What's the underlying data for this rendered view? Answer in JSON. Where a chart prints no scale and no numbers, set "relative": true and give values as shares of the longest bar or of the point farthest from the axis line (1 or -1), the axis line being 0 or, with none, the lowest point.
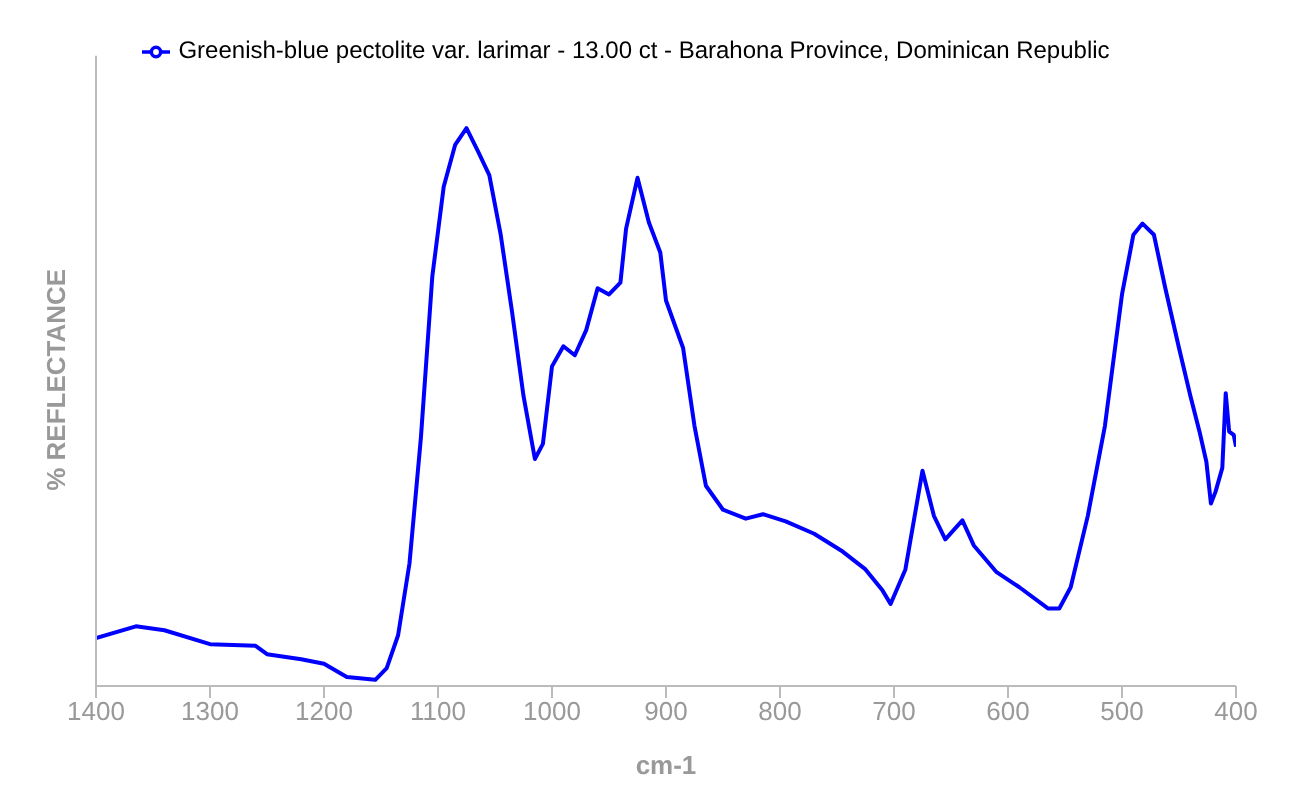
{
  "chart_data": {
    "type": "line",
    "xlabel": "cm-1",
    "ylabel": "% REFLECTANCE",
    "relative": true,
    "xlim": [
      1400,
      400
    ],
    "xticks": [
      1400,
      1300,
      1200,
      1100,
      1000,
      900,
      800,
      700,
      600,
      500,
      400
    ],
    "x": [
      1400,
      1365,
      1340,
      1300,
      1260,
      1250,
      1220,
      1200,
      1180,
      1155,
      1145,
      1135,
      1125,
      1115,
      1105,
      1095,
      1085,
      1075,
      1065,
      1055,
      1045,
      1035,
      1025,
      1015,
      1008,
      1000,
      990,
      980,
      970,
      960,
      950,
      940,
      935,
      925,
      915,
      905,
      900,
      885,
      875,
      865,
      850,
      830,
      815,
      795,
      770,
      745,
      725,
      710,
      703,
      690,
      675,
      665,
      655,
      640,
      630,
      610,
      590,
      565,
      555,
      545,
      530,
      515,
      500,
      490,
      482,
      472,
      462,
      450,
      440,
      432,
      426,
      422,
      418,
      412,
      409,
      406,
      402,
      400
    ],
    "series": [
      {
        "name": "Greenish-blue pectolite var. larimar - 13.00 ct - Barahona Province, Dominican Republic",
        "color": "#0000ff",
        "values": [
          0.086,
          0.107,
          0.1,
          0.075,
          0.072,
          0.057,
          0.048,
          0.04,
          0.016,
          0.011,
          0.032,
          0.091,
          0.22,
          0.445,
          0.734,
          0.895,
          0.97,
          1.0,
          0.959,
          0.916,
          0.809,
          0.67,
          0.52,
          0.407,
          0.434,
          0.573,
          0.609,
          0.593,
          0.638,
          0.713,
          0.702,
          0.723,
          0.82,
          0.911,
          0.831,
          0.777,
          0.691,
          0.606,
          0.466,
          0.359,
          0.316,
          0.3,
          0.308,
          0.295,
          0.273,
          0.241,
          0.209,
          0.171,
          0.147,
          0.209,
          0.386,
          0.305,
          0.263,
          0.297,
          0.252,
          0.204,
          0.177,
          0.139,
          0.139,
          0.177,
          0.305,
          0.466,
          0.702,
          0.809,
          0.829,
          0.809,
          0.713,
          0.606,
          0.52,
          0.456,
          0.402,
          0.327,
          0.348,
          0.391,
          0.525,
          0.456,
          0.45,
          0.429
        ]
      }
    ],
    "legend": "top",
    "marker": "none",
    "line_style": "solid",
    "grid": false
  }
}
